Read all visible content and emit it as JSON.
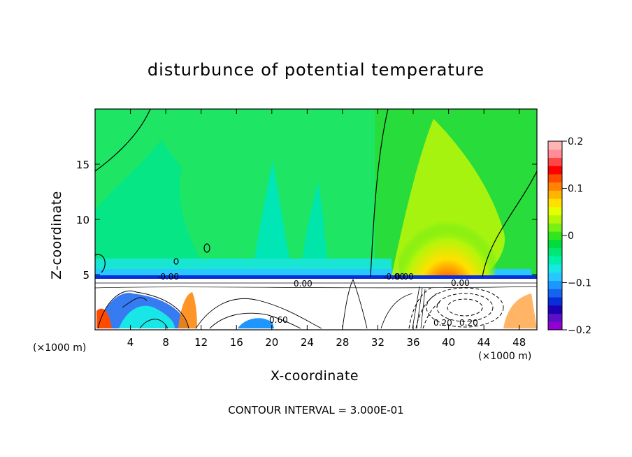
{
  "chart_data": {
    "type": "heatmap",
    "title": "disturbunce of potential temperature",
    "xlabel": "X-coordinate",
    "ylabel": "Z-coordinate",
    "x_unit": "(×1000 m)",
    "x_ticks": [
      4,
      8,
      12,
      16,
      20,
      24,
      28,
      32,
      36,
      40,
      44,
      48
    ],
    "y_ticks": [
      5,
      10,
      15
    ],
    "xlim": [
      0,
      50
    ],
    "ylim": [
      0,
      20
    ],
    "colorbar": {
      "range": [
        -0.2,
        0.2
      ],
      "tick_labels": [
        "0.2",
        "0.1",
        "0",
        "−0.1",
        "−0.2"
      ],
      "colors": [
        "#9400d3",
        "#5a0fc8",
        "#1e00b4",
        "#0a2ddc",
        "#1464f0",
        "#1e96ff",
        "#28c8ff",
        "#19e6e6",
        "#00f0aa",
        "#00e678",
        "#00dc3c",
        "#32e61e",
        "#78f014",
        "#b4f50a",
        "#e6ff00",
        "#ffe100",
        "#ffb400",
        "#ff8200",
        "#ff4b00",
        "#ff0000",
        "#ff4646",
        "#ff8c96",
        "#ffb4b4"
      ]
    },
    "contour_labels": [
      "-0.00",
      "0.00",
      "0.00",
      "0.00",
      "0.60",
      "-0.00",
      "0.20",
      "0.20"
    ],
    "footnote": "CONTOUR INTERVAL = 3.000E-01"
  }
}
